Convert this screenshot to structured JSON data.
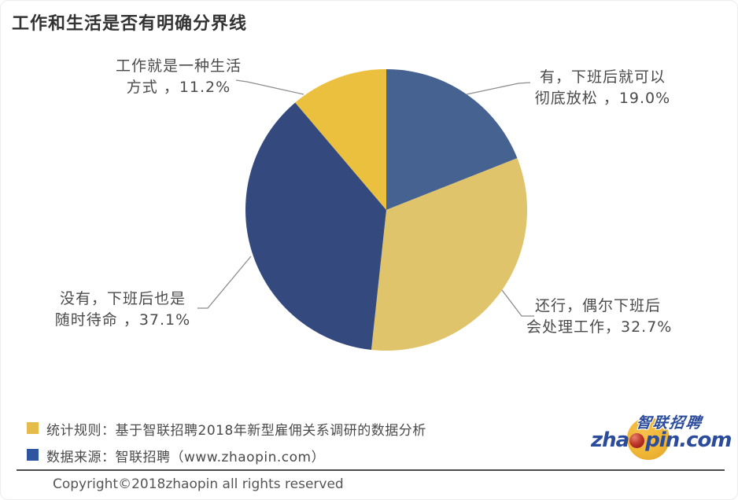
{
  "page": {
    "title": "工作和生活是否有明确分界线",
    "copyright": "Copyright©2018zhaopin all rights reserved"
  },
  "chart_data": {
    "type": "pie",
    "title": "工作和生活是否有明确分界线",
    "unit": "%",
    "total": 100,
    "start_angle": "12-oclock",
    "direction": "clockwise",
    "legend_position": "none",
    "slices": [
      {
        "label": "有，下班后就可以彻底放松",
        "value": 19.0,
        "color": "#466290",
        "callout": [
          "有，下班后就可以",
          "彻底放松 ，19.0%"
        ]
      },
      {
        "label": "还行，偶尔下班后会处理工作",
        "value": 32.7,
        "color": "#DFC46B",
        "callout": [
          "还行，偶尔下班后",
          "会处理工作，32.7%"
        ]
      },
      {
        "label": "没有，下班后也是随时待命",
        "value": 37.1,
        "color": "#344A7E",
        "callout": [
          "没有，下班后也是",
          "随时待命 ，37.1%"
        ]
      },
      {
        "label": "工作就是一种生活方式",
        "value": 11.2,
        "color": "#EBC03E",
        "callout": [
          "工作就是一种生活",
          "方式 ，11.2%"
        ]
      }
    ]
  },
  "source_notes": {
    "rows": [
      {
        "swatch_color": "#E5BC49",
        "text": "统计规则：基于智联招聘2018年新型雇佣关系调研的数据分析"
      },
      {
        "swatch_color": "#2E55A0",
        "text": "数据来源：智联招聘（www.zhaopin.com）"
      }
    ]
  },
  "brand": {
    "wordmark_pre": "zha",
    "wordmark_post": "pin.com",
    "cjk_name": "智联招聘",
    "blue": "#2B4B9B",
    "yellow": "#F0B636",
    "red": "#A8251E"
  }
}
